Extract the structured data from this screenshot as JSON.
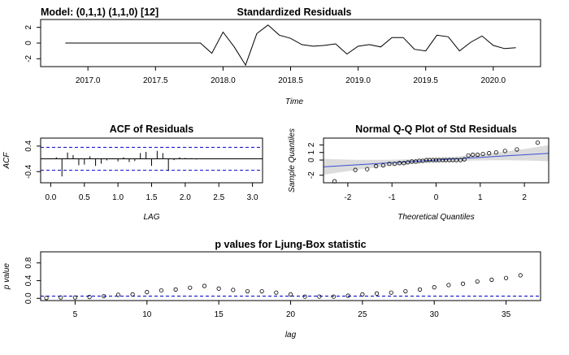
{
  "model_label": "Model: (0,1,1) (1,1,0) [12]",
  "colors": {
    "line": "#000000",
    "ref": "#0000cc",
    "qq_line": "#3a4fd1",
    "band": "#dcdcdc"
  },
  "chart_data": [
    {
      "id": "residuals",
      "type": "line",
      "title": "Standardized Residuals",
      "xlabel": "Time",
      "ylabel": "",
      "xlim": [
        2016.65,
        2020.35
      ],
      "ylim": [
        -3,
        3
      ],
      "xticks": [
        2017.0,
        2017.5,
        2018.0,
        2018.5,
        2019.0,
        2019.5,
        2020.0
      ],
      "xtick_labels": [
        "2017.0",
        "2017.5",
        "2018.0",
        "2018.5",
        "2019.0",
        "2019.5",
        "2020.0"
      ],
      "yticks": [
        -2,
        0,
        2
      ],
      "ytick_labels": [
        "-2",
        "0",
        "2"
      ],
      "x": [
        2016.833,
        2017.833,
        2017.917,
        2018.0,
        2018.083,
        2018.167,
        2018.25,
        2018.333,
        2018.417,
        2018.5,
        2018.583,
        2018.667,
        2018.75,
        2018.833,
        2018.917,
        2019.0,
        2019.083,
        2019.167,
        2019.25,
        2019.333,
        2019.417,
        2019.5,
        2019.583,
        2019.667,
        2019.75,
        2019.833,
        2019.917,
        2020.0,
        2020.083,
        2020.167
      ],
      "y": [
        0,
        0,
        -1.3,
        1.4,
        -0.5,
        -2.8,
        1.2,
        2.3,
        1.0,
        0.6,
        -0.2,
        -0.4,
        -0.3,
        -0.1,
        -1.4,
        -0.4,
        -0.2,
        -0.5,
        0.7,
        0.7,
        -0.8,
        -1.0,
        1.0,
        0.8,
        -1.0,
        0.1,
        0.9,
        -0.3,
        -0.7,
        -0.6
      ]
    },
    {
      "id": "acf",
      "type": "bar",
      "title": "ACF of Residuals",
      "xlabel": "LAG",
      "ylabel": "ACF",
      "xlim": [
        -0.15,
        3.15
      ],
      "ylim": [
        -0.75,
        0.65
      ],
      "xticks": [
        0.0,
        0.5,
        1.0,
        1.5,
        2.0,
        2.5,
        3.0
      ],
      "xtick_labels": [
        "0.0",
        "0.5",
        "1.0",
        "1.5",
        "2.0",
        "2.5",
        "3.0"
      ],
      "yticks": [
        -0.4,
        0.4
      ],
      "ytick_labels": [
        "-0.4",
        "0.4"
      ],
      "ci": 0.36,
      "lags": [
        0.083,
        0.167,
        0.25,
        0.333,
        0.417,
        0.5,
        0.583,
        0.667,
        0.75,
        0.833,
        0.917,
        1.0,
        1.083,
        1.167,
        1.25,
        1.333,
        1.417,
        1.5,
        1.583,
        1.667,
        1.75,
        1.833,
        1.917,
        2.0,
        2.083,
        2.167,
        2.25
      ],
      "values": [
        0.05,
        -0.55,
        0.2,
        0.12,
        -0.2,
        -0.18,
        0.08,
        -0.22,
        -0.15,
        -0.05,
        0.02,
        -0.08,
        0.05,
        -0.1,
        -0.07,
        0.18,
        0.22,
        -0.22,
        0.25,
        0.18,
        -0.38,
        -0.04,
        0.05,
        0.03,
        0.02,
        -0.02,
        0.01
      ]
    },
    {
      "id": "qq",
      "type": "scatter",
      "title": "Normal Q-Q Plot of Std Residuals",
      "xlabel": "Theoretical Quantiles",
      "ylabel": "Sample Quantiles",
      "xlim": [
        -2.55,
        2.55
      ],
      "ylim": [
        -3.0,
        2.9
      ],
      "xticks": [
        -2,
        -1,
        0,
        1,
        2
      ],
      "xtick_labels": [
        "-2",
        "-1",
        "0",
        "1",
        "2"
      ],
      "yticks": [
        -2,
        0,
        1,
        2
      ],
      "ytick_labels": [
        "-2",
        "0",
        "1",
        "2"
      ],
      "line_intercept": 0.0,
      "line_slope": 0.35,
      "x": [
        -2.3,
        -1.83,
        -1.56,
        -1.36,
        -1.2,
        -1.06,
        -0.94,
        -0.83,
        -0.73,
        -0.64,
        -0.55,
        -0.46,
        -0.38,
        -0.3,
        -0.22,
        -0.15,
        -0.07,
        0.0,
        0.07,
        0.15,
        0.22,
        0.3,
        0.38,
        0.46,
        0.55,
        0.64,
        0.73,
        0.83,
        0.94,
        1.06,
        1.2,
        1.36,
        1.56,
        1.83,
        2.3
      ],
      "y": [
        -2.8,
        -1.3,
        -1.2,
        -0.8,
        -0.7,
        -0.5,
        -0.5,
        -0.4,
        -0.4,
        -0.3,
        -0.2,
        -0.2,
        -0.1,
        -0.1,
        0.0,
        0.0,
        0.0,
        0.0,
        0.0,
        0.0,
        0.0,
        0.0,
        0.0,
        0.0,
        0.0,
        0.1,
        0.6,
        0.7,
        0.7,
        0.8,
        0.9,
        1.0,
        1.2,
        1.4,
        2.3
      ]
    },
    {
      "id": "ljung",
      "type": "scatter",
      "title": "p values for Ljung-Box statistic",
      "xlabel": "lag",
      "ylabel": "p value",
      "xlim": [
        2.6,
        37.4
      ],
      "ylim": [
        -0.05,
        1.05
      ],
      "xticks": [
        5,
        10,
        15,
        20,
        25,
        30,
        35
      ],
      "xtick_labels": [
        "5",
        "10",
        "15",
        "20",
        "25",
        "30",
        "35"
      ],
      "yticks": [
        0.0,
        0.4,
        0.8
      ],
      "ytick_labels": [
        "0.0",
        "0.4",
        "0.8"
      ],
      "ref_line": 0.05,
      "x": [
        3,
        4,
        5,
        6,
        7,
        8,
        9,
        10,
        11,
        12,
        13,
        14,
        15,
        16,
        17,
        18,
        19,
        20,
        21,
        22,
        23,
        24,
        25,
        26,
        27,
        28,
        29,
        30,
        31,
        32,
        33,
        34,
        35,
        36
      ],
      "y": [
        0.01,
        0.02,
        0.02,
        0.03,
        0.05,
        0.08,
        0.09,
        0.14,
        0.18,
        0.2,
        0.24,
        0.28,
        0.22,
        0.19,
        0.16,
        0.16,
        0.13,
        0.09,
        0.04,
        0.04,
        0.04,
        0.06,
        0.09,
        0.11,
        0.13,
        0.16,
        0.2,
        0.25,
        0.3,
        0.33,
        0.38,
        0.42,
        0.46,
        0.52
      ]
    }
  ]
}
